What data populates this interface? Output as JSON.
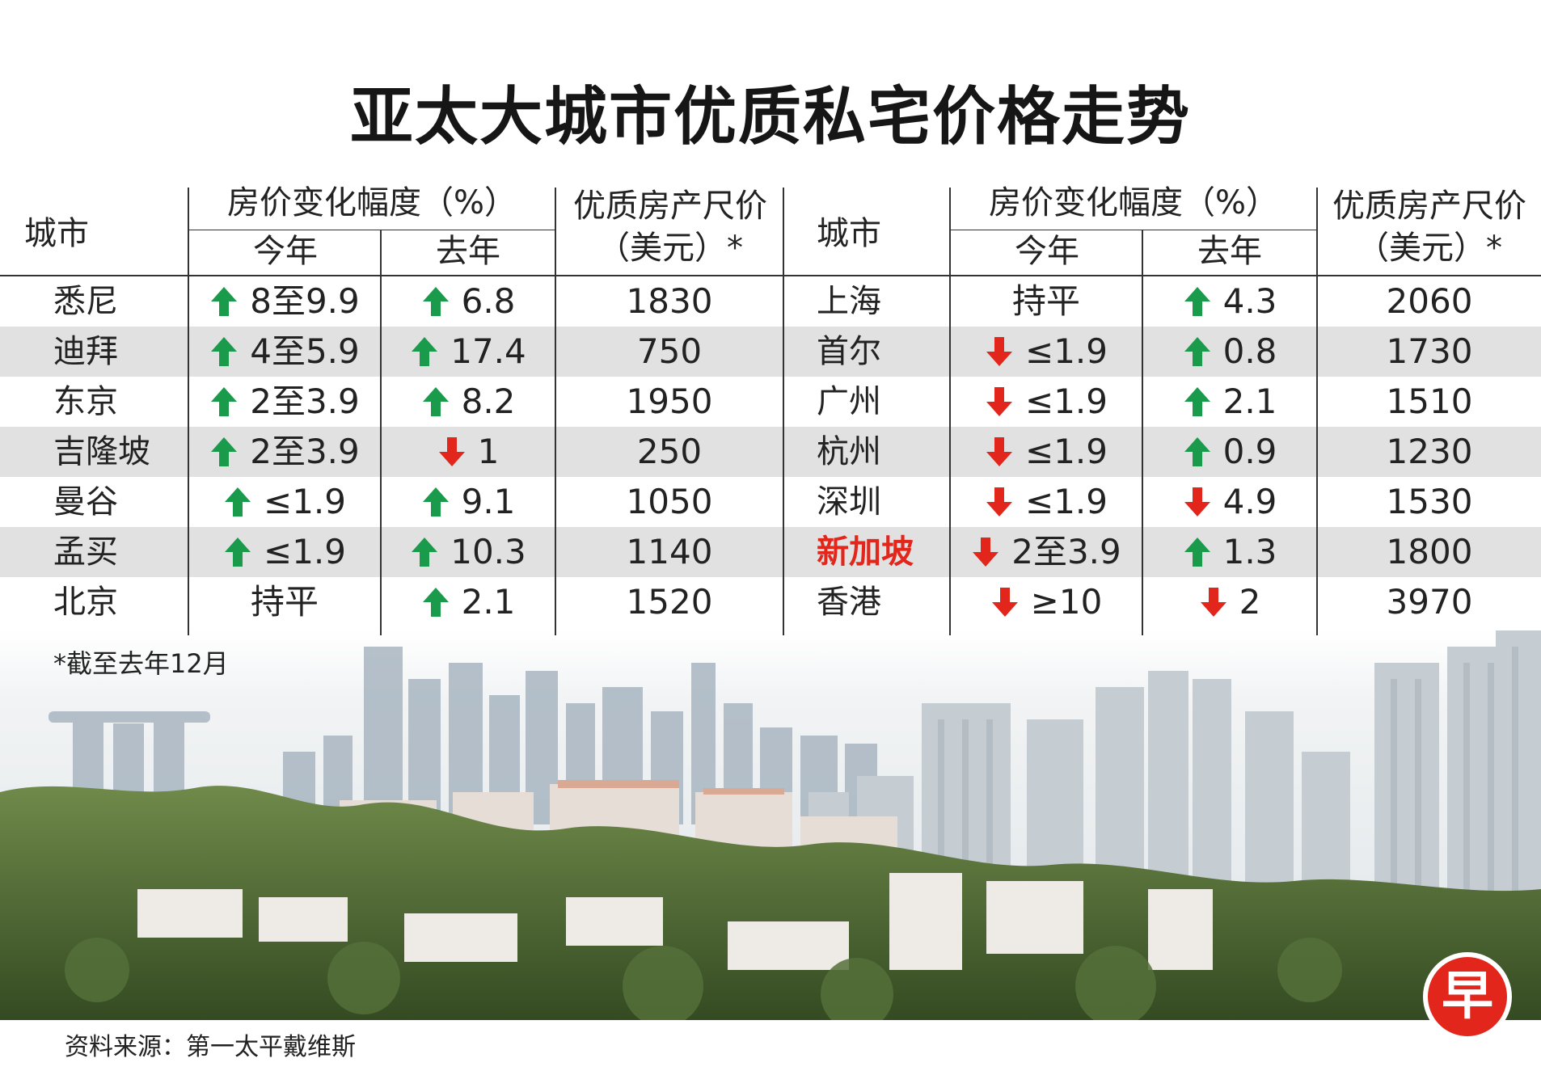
{
  "title": "亚太大城市优质私宅价格走势",
  "colors": {
    "up": "#1a9a4b",
    "down": "#e2261c",
    "highlight": "#e2261c"
  },
  "header": {
    "city": "城市",
    "change": "房价变化幅度（%）",
    "this_year": "今年",
    "last_year": "去年",
    "price_line1": "优质房产尺价",
    "price_line2": "（美元）*"
  },
  "chart_data": {
    "type": "table",
    "title": "亚太大城市优质私宅价格走势",
    "columns": [
      "城市",
      "房价变化幅度（%）今年",
      "房价变化幅度（%）去年",
      "优质房产尺价（美元）*"
    ],
    "rows": [
      {
        "city": "悉尼",
        "this_year": "8至9.9",
        "this_dir": "up",
        "last_year": "6.8",
        "last_dir": "up",
        "price": "1830"
      },
      {
        "city": "迪拜",
        "this_year": "4至5.9",
        "this_dir": "up",
        "last_year": "17.4",
        "last_dir": "up",
        "price": "750"
      },
      {
        "city": "东京",
        "this_year": "2至3.9",
        "this_dir": "up",
        "last_year": "8.2",
        "last_dir": "up",
        "price": "1950"
      },
      {
        "city": "吉隆坡",
        "this_year": "2至3.9",
        "this_dir": "up",
        "last_year": "1",
        "last_dir": "down",
        "price": "250"
      },
      {
        "city": "曼谷",
        "this_year": "≤1.9",
        "this_dir": "up",
        "last_year": "9.1",
        "last_dir": "up",
        "price": "1050"
      },
      {
        "city": "孟买",
        "this_year": "≤1.9",
        "this_dir": "up",
        "last_year": "10.3",
        "last_dir": "up",
        "price": "1140"
      },
      {
        "city": "北京",
        "this_year": "持平",
        "this_dir": "none",
        "last_year": "2.1",
        "last_dir": "up",
        "price": "1520"
      },
      {
        "city": "上海",
        "this_year": "持平",
        "this_dir": "none",
        "last_year": "4.3",
        "last_dir": "up",
        "price": "2060"
      },
      {
        "city": "首尔",
        "this_year": "≤1.9",
        "this_dir": "down",
        "last_year": "0.8",
        "last_dir": "up",
        "price": "1730"
      },
      {
        "city": "广州",
        "this_year": "≤1.9",
        "this_dir": "down",
        "last_year": "2.1",
        "last_dir": "up",
        "price": "1510"
      },
      {
        "city": "杭州",
        "this_year": "≤1.9",
        "this_dir": "down",
        "last_year": "0.9",
        "last_dir": "up",
        "price": "1230"
      },
      {
        "city": "深圳",
        "this_year": "≤1.9",
        "this_dir": "down",
        "last_year": "4.9",
        "last_dir": "down",
        "price": "1530"
      },
      {
        "city": "新加坡",
        "this_year": "2至3.9",
        "this_dir": "down",
        "last_year": "1.3",
        "last_dir": "up",
        "price": "1800",
        "highlight": true
      },
      {
        "city": "香港",
        "this_year": "≥10",
        "this_dir": "down",
        "last_year": "2",
        "last_dir": "down",
        "price": "3970"
      }
    ]
  },
  "footnote": "*截至去年12月",
  "source": "资料来源：第一太平戴维斯",
  "logo": "早"
}
